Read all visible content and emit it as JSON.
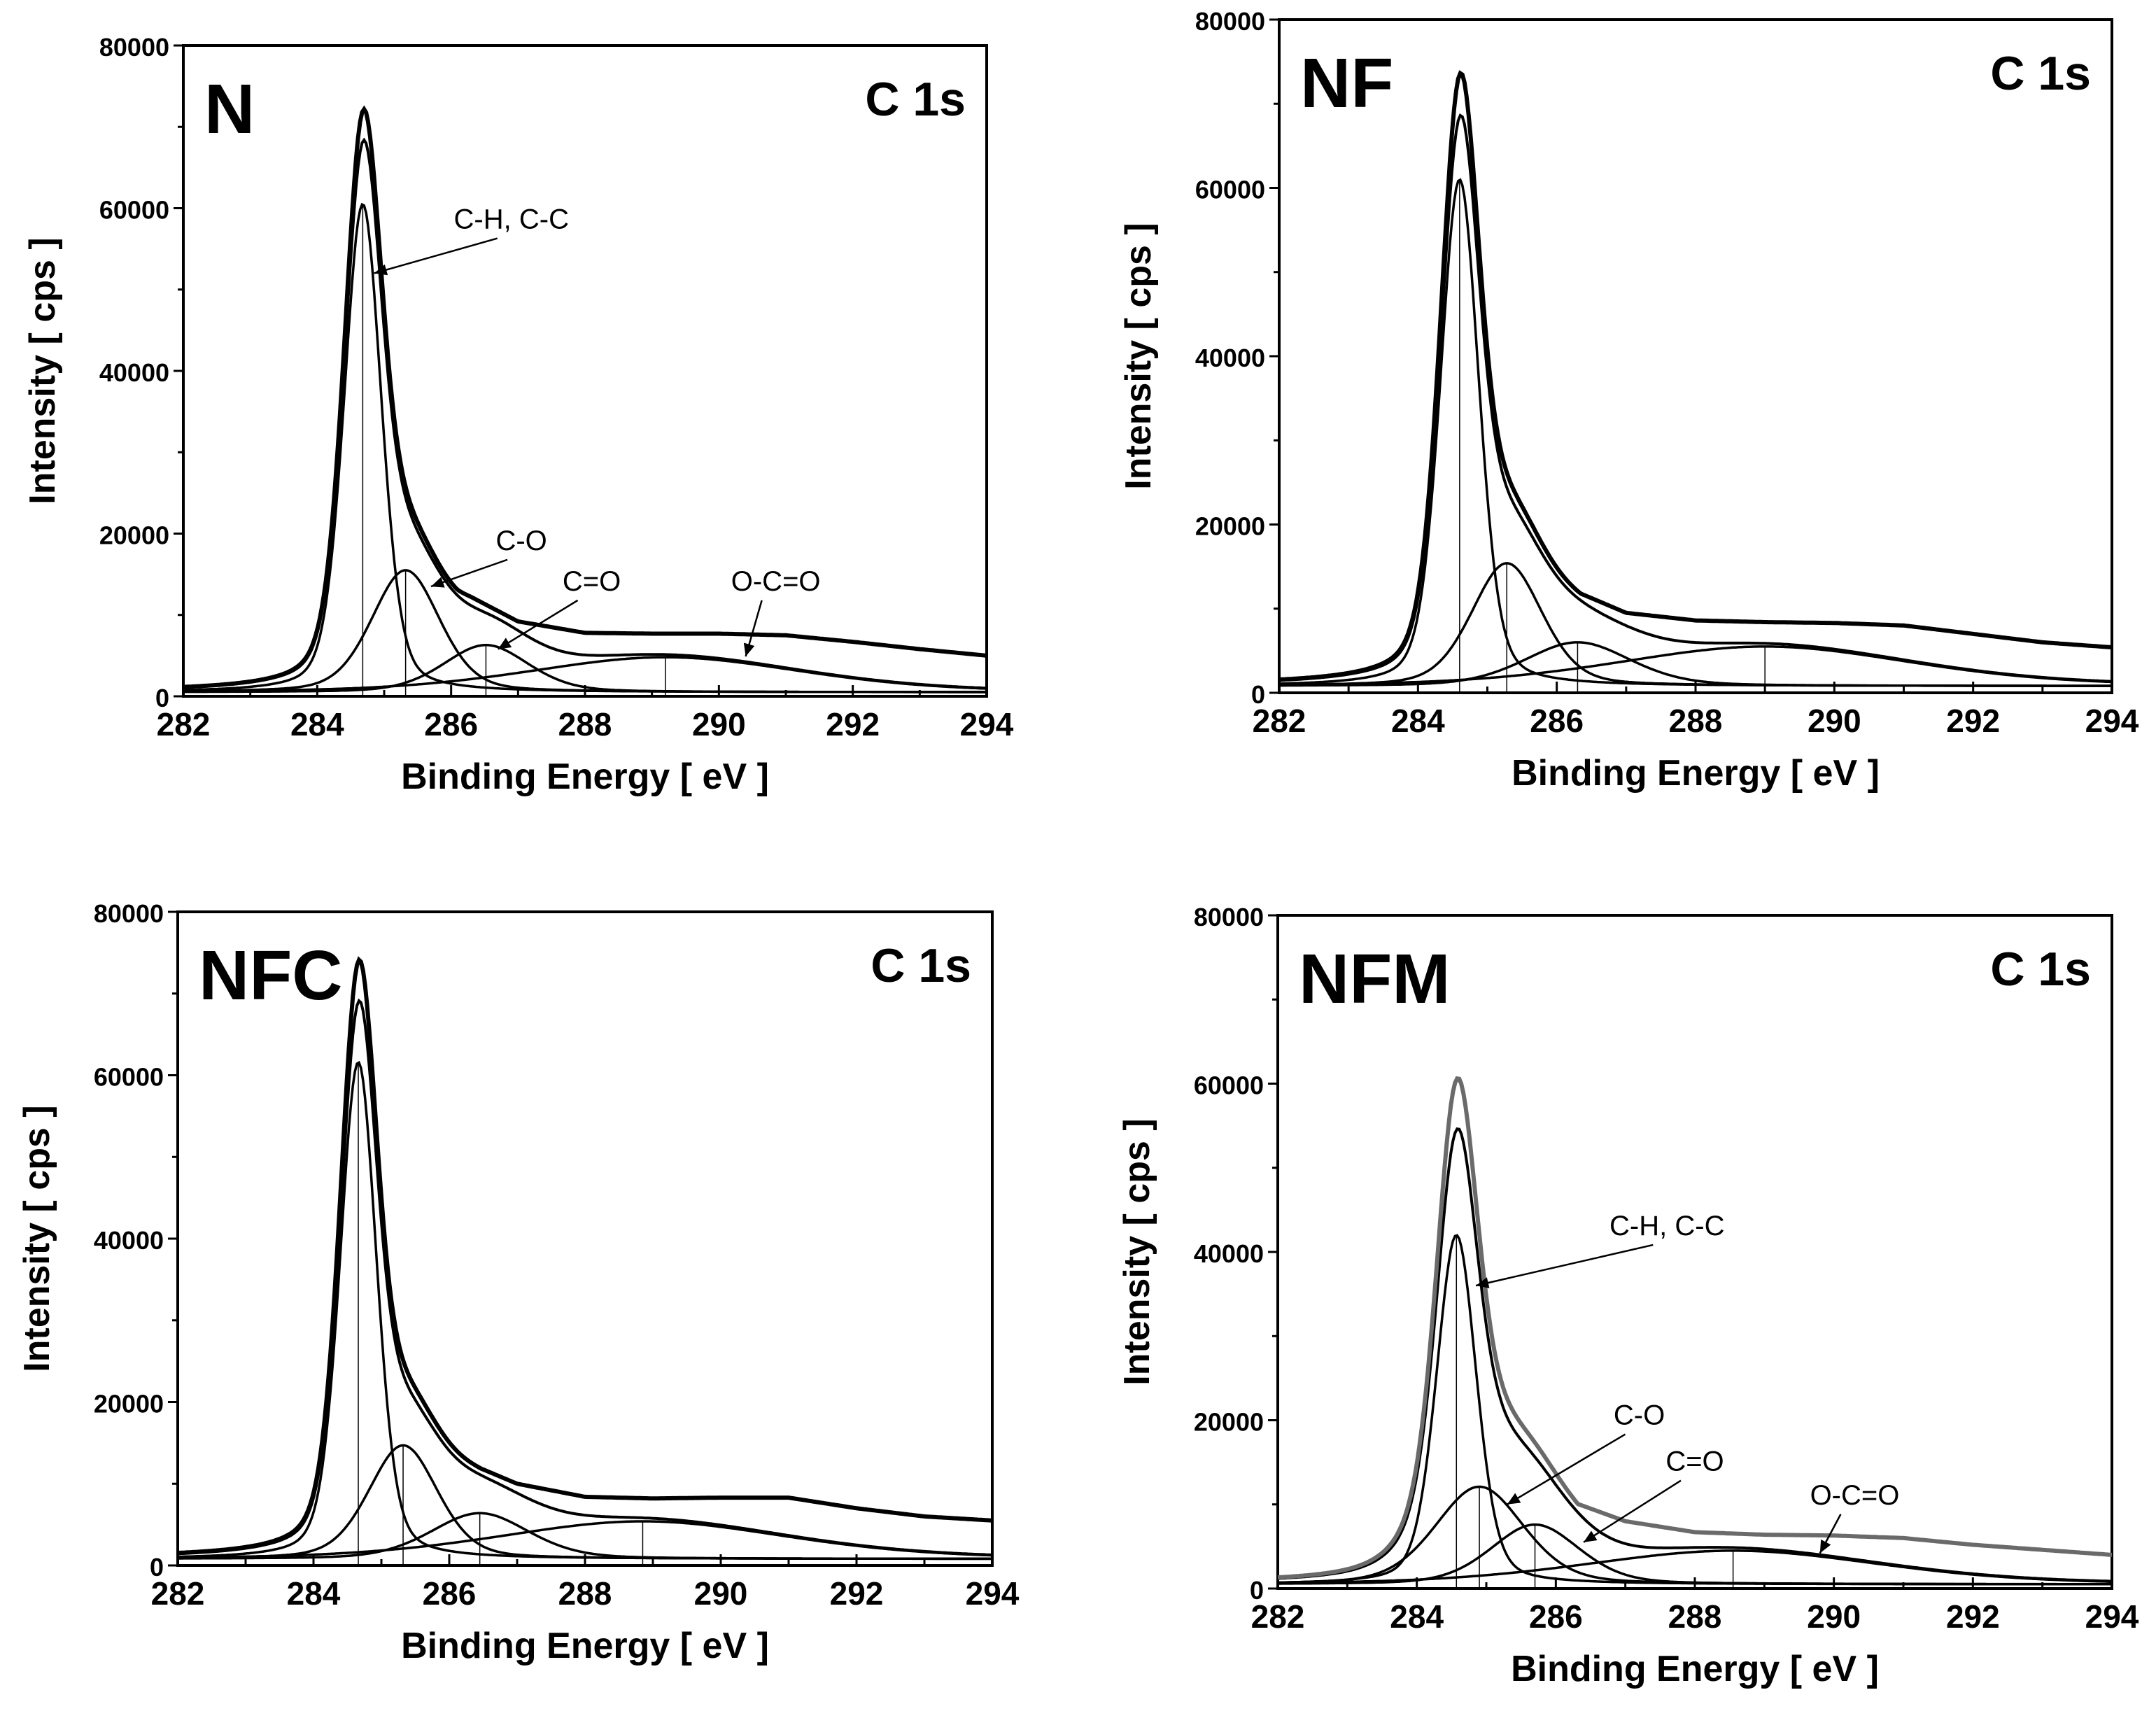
{
  "figure": {
    "description_colors": {
      "axis": "#000000",
      "series": "#000000",
      "nfm_envelope": "#6a6a6a"
    }
  },
  "chart_data": [
    {
      "type": "line",
      "title": "N",
      "subtitle": "C 1s",
      "xlabel": "Binding Energy  [ eV ]",
      "ylabel": "Intensity  [ cps ]",
      "xlim": [
        282,
        294
      ],
      "ylim": [
        0,
        80000
      ],
      "xticks": [
        282,
        284,
        286,
        288,
        290,
        292,
        294
      ],
      "yticks": [
        0,
        20000,
        40000,
        60000,
        80000
      ],
      "baseline_value": 500,
      "components": [
        {
          "name": "C-H, C-C",
          "center": 284.68,
          "amplitude": 60000,
          "width": 0.33
        },
        {
          "name": "C-O",
          "center": 285.32,
          "amplitude": 15000,
          "width": 0.6
        },
        {
          "name": "C=O",
          "center": 286.52,
          "amplitude": 5800,
          "width": 0.75
        },
        {
          "name": "O-C=O",
          "center": 289.2,
          "amplitude": 4300,
          "width": 2.4
        }
      ],
      "envelope_peak": 72000,
      "experimental_tail": {
        "x": [
          286,
          287,
          288,
          289,
          290,
          291,
          292,
          293,
          294
        ],
        "y": [
          13500,
          9200,
          7800,
          7700,
          7700,
          7500,
          6700,
          5800,
          5000
        ]
      },
      "annotations": [
        {
          "text": "C-H, C-C",
          "x": 286.9,
          "y": 57500,
          "arrow_to_x": 284.85,
          "arrow_to_y": 52000
        },
        {
          "text": "C-O",
          "x": 287.05,
          "y": 18000,
          "arrow_to_x": 285.7,
          "arrow_to_y": 13500
        },
        {
          "text": "C=O",
          "x": 288.1,
          "y": 13000,
          "arrow_to_x": 286.7,
          "arrow_to_y": 5800
        },
        {
          "text": "O-C=O",
          "x": 290.85,
          "y": 13000,
          "arrow_to_x": 290.4,
          "arrow_to_y": 4900
        }
      ]
    },
    {
      "type": "line",
      "title": "NF",
      "subtitle": "C 1s",
      "xlabel": "Binding Energy  [ eV ]",
      "ylabel": "Intensity  [ cps ]",
      "xlim": [
        282,
        294
      ],
      "ylim": [
        0,
        80000
      ],
      "xticks": [
        282,
        284,
        286,
        288,
        290,
        292,
        294
      ],
      "yticks": [
        0,
        20000,
        40000,
        60000,
        80000
      ],
      "baseline_value": 800,
      "components": [
        {
          "name": "C-H, C-C",
          "center": 284.6,
          "amplitude": 60200,
          "width": 0.33
        },
        {
          "name": "C-O",
          "center": 285.28,
          "amplitude": 14600,
          "width": 0.6
        },
        {
          "name": "C=O",
          "center": 286.3,
          "amplitude": 5200,
          "width": 0.9
        },
        {
          "name": "O-C=O",
          "center": 289.0,
          "amplitude": 4700,
          "width": 2.5
        }
      ],
      "envelope_peak": 73500,
      "experimental_tail": {
        "x": [
          286,
          287,
          288,
          289,
          290,
          291,
          292,
          293,
          294
        ],
        "y": [
          13000,
          9500,
          8600,
          8400,
          8300,
          8000,
          7000,
          6000,
          5400
        ]
      },
      "annotations": []
    },
    {
      "type": "line",
      "title": "NFC",
      "subtitle": "C 1s",
      "xlabel": "Binding Energy  [ eV ]",
      "ylabel": "Intensity  [ cps ]",
      "xlim": [
        282,
        294
      ],
      "ylim": [
        0,
        80000
      ],
      "xticks": [
        282,
        284,
        286,
        288,
        290,
        292,
        294
      ],
      "yticks": [
        0,
        20000,
        40000,
        60000,
        80000
      ],
      "baseline_value": 800,
      "components": [
        {
          "name": "C-H, C-C",
          "center": 284.66,
          "amplitude": 60800,
          "width": 0.32
        },
        {
          "name": "C-O",
          "center": 285.32,
          "amplitude": 13900,
          "width": 0.6
        },
        {
          "name": "C=O",
          "center": 286.45,
          "amplitude": 5600,
          "width": 0.85
        },
        {
          "name": "O-C=O",
          "center": 288.85,
          "amplitude": 4600,
          "width": 2.5
        }
      ],
      "envelope_peak": 74000,
      "experimental_tail": {
        "x": [
          286,
          287,
          288,
          289,
          290,
          291,
          292,
          293,
          294
        ],
        "y": [
          13500,
          10000,
          8400,
          8200,
          8300,
          8300,
          7000,
          6000,
          5500
        ]
      },
      "annotations": []
    },
    {
      "type": "line",
      "title": "NFM",
      "subtitle": "C 1s",
      "xlabel": "Binding Energy  [ eV ]",
      "ylabel": "Intensity  [ cps ]",
      "xlim": [
        282,
        294
      ],
      "ylim": [
        0,
        80000
      ],
      "xticks": [
        282,
        284,
        286,
        288,
        290,
        292,
        294
      ],
      "yticks": [
        0,
        20000,
        40000,
        60000,
        80000
      ],
      "baseline_value": 500,
      "components": [
        {
          "name": "C-H, C-C",
          "center": 284.57,
          "amplitude": 41500,
          "width": 0.34
        },
        {
          "name": "C-O",
          "center": 284.9,
          "amplitude": 11600,
          "width": 0.75
        },
        {
          "name": "C=O",
          "center": 285.7,
          "amplitude": 7100,
          "width": 0.75
        },
        {
          "name": "O-C=O",
          "center": 288.55,
          "amplitude": 4000,
          "width": 2.5
        }
      ],
      "envelope_peak": 60500,
      "experimental_tail": {
        "x": [
          286,
          287,
          288,
          289,
          290,
          291,
          292,
          293,
          294
        ],
        "y": [
          11000,
          8000,
          6700,
          6400,
          6300,
          6000,
          5200,
          4600,
          4000
        ]
      },
      "annotations": [
        {
          "text": "C-H, C-C",
          "x": 287.6,
          "y": 42000,
          "arrow_to_x": 284.85,
          "arrow_to_y": 36000
        },
        {
          "text": "C-O",
          "x": 287.2,
          "y": 19500,
          "arrow_to_x": 285.3,
          "arrow_to_y": 10000
        },
        {
          "text": "C=O",
          "x": 288.0,
          "y": 14000,
          "arrow_to_x": 286.4,
          "arrow_to_y": 5500
        },
        {
          "text": "O-C=O",
          "x": 290.3,
          "y": 10000,
          "arrow_to_x": 289.8,
          "arrow_to_y": 4200
        }
      ]
    }
  ]
}
